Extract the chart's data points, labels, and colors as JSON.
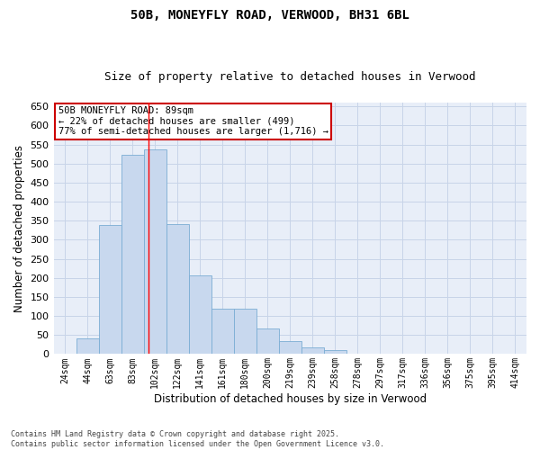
{
  "title1": "50B, MONEYFLY ROAD, VERWOOD, BH31 6BL",
  "title2": "Size of property relative to detached houses in Verwood",
  "xlabel": "Distribution of detached houses by size in Verwood",
  "ylabel": "Number of detached properties",
  "categories": [
    "24sqm",
    "44sqm",
    "63sqm",
    "83sqm",
    "102sqm",
    "122sqm",
    "141sqm",
    "161sqm",
    "180sqm",
    "200sqm",
    "219sqm",
    "239sqm",
    "258sqm",
    "278sqm",
    "297sqm",
    "317sqm",
    "336sqm",
    "356sqm",
    "375sqm",
    "395sqm",
    "414sqm"
  ],
  "values": [
    2,
    40,
    338,
    522,
    537,
    340,
    207,
    120,
    118,
    67,
    35,
    18,
    11,
    2,
    0,
    0,
    0,
    0,
    0,
    0,
    0
  ],
  "bar_color": "#c8d8ee",
  "bar_edge_color": "#7aadd4",
  "grid_color": "#c8d4e8",
  "background_color": "#e8eef8",
  "red_line_x": 3.72,
  "annotation_text": "50B MONEYFLY ROAD: 89sqm\n← 22% of detached houses are smaller (499)\n77% of semi-detached houses are larger (1,716) →",
  "annotation_box_color": "#ffffff",
  "annotation_box_edge": "#cc0000",
  "footnote": "Contains HM Land Registry data © Crown copyright and database right 2025.\nContains public sector information licensed under the Open Government Licence v3.0.",
  "ylim": [
    0,
    660
  ],
  "yticks": [
    0,
    50,
    100,
    150,
    200,
    250,
    300,
    350,
    400,
    450,
    500,
    550,
    600,
    650
  ],
  "title_fontsize": 10,
  "subtitle_fontsize": 9,
  "tick_fontsize": 7,
  "ylabel_fontsize": 8.5,
  "xlabel_fontsize": 8.5,
  "annotation_fontsize": 7.5
}
